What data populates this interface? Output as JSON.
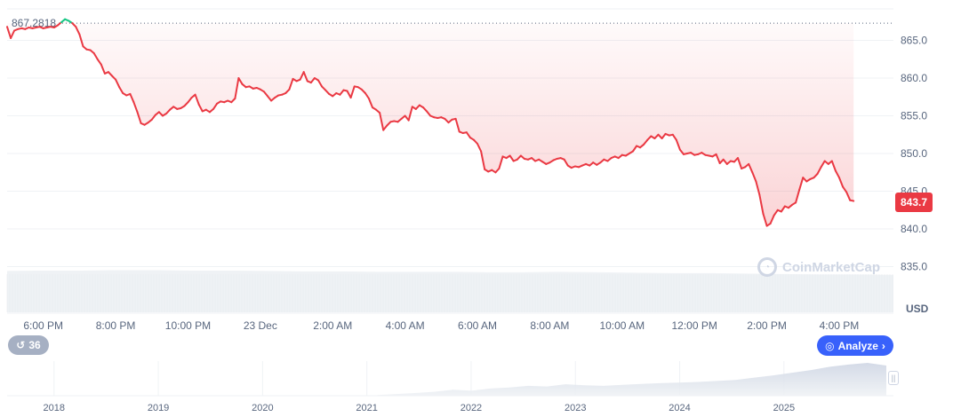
{
  "chart_data": {
    "type": "line",
    "title": "",
    "currency": "USD",
    "y_axis": {
      "ticks": [
        "865.0",
        "860.0",
        "855.0",
        "850.0",
        "845.0",
        "840.0",
        "835.0"
      ],
      "tick_values": [
        865,
        860,
        855,
        850,
        845,
        840,
        835
      ],
      "ylim": [
        834,
        868
      ]
    },
    "x_axis": {
      "ticks": [
        "6:00 PM",
        "8:00 PM",
        "10:00 PM",
        "23 Dec",
        "2:00 AM",
        "4:00 AM",
        "6:00 AM",
        "8:00 AM",
        "10:00 AM",
        "12:00 PM",
        "2:00 PM",
        "4:00 PM"
      ],
      "tick_hours": [
        0,
        2,
        4,
        6,
        8,
        10,
        12,
        14,
        16,
        18,
        20,
        22
      ],
      "xlim_hours": [
        -1,
        23.5
      ]
    },
    "series": [
      {
        "color_down": "#ea3943",
        "color_up": "#16c784",
        "points": [
          [
            -1.0,
            866.8
          ],
          [
            -0.9,
            865.3
          ],
          [
            -0.8,
            866.3
          ],
          [
            -0.7,
            866.5
          ],
          [
            -0.6,
            866.6
          ],
          [
            -0.5,
            866.5
          ],
          [
            -0.4,
            866.7
          ],
          [
            -0.3,
            866.6
          ],
          [
            -0.2,
            866.7
          ],
          [
            -0.1,
            866.8
          ],
          [
            0.0,
            866.6
          ],
          [
            0.1,
            866.7
          ],
          [
            0.2,
            866.8
          ],
          [
            0.3,
            866.7
          ],
          [
            0.4,
            867.0
          ],
          [
            0.5,
            867.4
          ],
          [
            0.6,
            867.8
          ],
          [
            0.7,
            867.6
          ],
          [
            0.8,
            867.3
          ],
          [
            0.9,
            866.8
          ],
          [
            1.0,
            865.8
          ],
          [
            1.1,
            864.2
          ],
          [
            1.2,
            863.8
          ],
          [
            1.3,
            863.7
          ],
          [
            1.4,
            863.3
          ],
          [
            1.5,
            862.5
          ],
          [
            1.6,
            861.8
          ],
          [
            1.7,
            860.6
          ],
          [
            1.8,
            860.8
          ],
          [
            1.9,
            860.3
          ],
          [
            2.0,
            859.8
          ],
          [
            2.1,
            858.8
          ],
          [
            2.2,
            858.0
          ],
          [
            2.3,
            857.7
          ],
          [
            2.4,
            857.9
          ],
          [
            2.5,
            856.8
          ],
          [
            2.6,
            855.5
          ],
          [
            2.7,
            854.0
          ],
          [
            2.8,
            853.8
          ],
          [
            2.9,
            854.1
          ],
          [
            3.0,
            854.5
          ],
          [
            3.1,
            855.1
          ],
          [
            3.2,
            855.5
          ],
          [
            3.3,
            855.0
          ],
          [
            3.4,
            855.3
          ],
          [
            3.5,
            855.8
          ],
          [
            3.6,
            856.2
          ],
          [
            3.7,
            855.9
          ],
          [
            3.8,
            856.0
          ],
          [
            3.9,
            856.3
          ],
          [
            4.0,
            856.8
          ],
          [
            4.1,
            857.4
          ],
          [
            4.2,
            857.8
          ],
          [
            4.3,
            856.5
          ],
          [
            4.4,
            855.6
          ],
          [
            4.5,
            855.8
          ],
          [
            4.6,
            855.5
          ],
          [
            4.7,
            855.9
          ],
          [
            4.8,
            856.6
          ],
          [
            4.9,
            856.9
          ],
          [
            5.0,
            856.8
          ],
          [
            5.1,
            857.0
          ],
          [
            5.2,
            856.8
          ],
          [
            5.3,
            857.3
          ],
          [
            5.4,
            860.0
          ],
          [
            5.5,
            859.2
          ],
          [
            5.6,
            858.8
          ],
          [
            5.7,
            858.9
          ],
          [
            5.8,
            858.6
          ],
          [
            5.9,
            858.7
          ],
          [
            6.0,
            858.5
          ],
          [
            6.1,
            858.2
          ],
          [
            6.2,
            857.6
          ],
          [
            6.3,
            857.0
          ],
          [
            6.4,
            857.4
          ],
          [
            6.5,
            857.7
          ],
          [
            6.6,
            857.8
          ],
          [
            6.7,
            858.0
          ],
          [
            6.8,
            858.5
          ],
          [
            6.9,
            859.9
          ],
          [
            7.0,
            859.6
          ],
          [
            7.1,
            859.8
          ],
          [
            7.2,
            860.8
          ],
          [
            7.3,
            859.6
          ],
          [
            7.4,
            859.4
          ],
          [
            7.5,
            860.0
          ],
          [
            7.6,
            859.7
          ],
          [
            7.7,
            858.9
          ],
          [
            7.8,
            858.4
          ],
          [
            7.9,
            857.9
          ],
          [
            8.0,
            857.6
          ],
          [
            8.1,
            858.0
          ],
          [
            8.2,
            857.8
          ],
          [
            8.3,
            858.4
          ],
          [
            8.4,
            858.3
          ],
          [
            8.5,
            857.4
          ],
          [
            8.6,
            858.9
          ],
          [
            8.7,
            858.8
          ],
          [
            8.8,
            858.5
          ],
          [
            8.9,
            858.0
          ],
          [
            9.0,
            857.3
          ],
          [
            9.1,
            856.1
          ],
          [
            9.2,
            855.8
          ],
          [
            9.3,
            855.4
          ],
          [
            9.4,
            853.1
          ],
          [
            9.5,
            853.7
          ],
          [
            9.6,
            854.2
          ],
          [
            9.7,
            854.3
          ],
          [
            9.8,
            854.2
          ],
          [
            9.9,
            854.6
          ],
          [
            10.0,
            855.0
          ],
          [
            10.1,
            854.4
          ],
          [
            10.2,
            856.2
          ],
          [
            10.3,
            855.9
          ],
          [
            10.4,
            856.4
          ],
          [
            10.5,
            856.1
          ],
          [
            10.6,
            855.6
          ],
          [
            10.7,
            855.0
          ],
          [
            10.8,
            854.8
          ],
          [
            10.9,
            854.7
          ],
          [
            11.0,
            854.8
          ],
          [
            11.1,
            854.6
          ],
          [
            11.2,
            854.1
          ],
          [
            11.3,
            854.5
          ],
          [
            11.4,
            854.6
          ],
          [
            11.5,
            852.9
          ],
          [
            11.6,
            852.7
          ],
          [
            11.7,
            852.8
          ],
          [
            11.8,
            852.1
          ],
          [
            11.9,
            851.8
          ],
          [
            12.0,
            851.3
          ],
          [
            12.1,
            850.3
          ],
          [
            12.2,
            847.9
          ],
          [
            12.3,
            847.6
          ],
          [
            12.4,
            847.8
          ],
          [
            12.5,
            847.5
          ],
          [
            12.6,
            848.0
          ],
          [
            12.7,
            849.6
          ],
          [
            12.8,
            849.4
          ],
          [
            12.9,
            849.7
          ],
          [
            13.0,
            849.0
          ],
          [
            13.1,
            849.2
          ],
          [
            13.2,
            849.7
          ],
          [
            13.3,
            849.3
          ],
          [
            13.4,
            849.2
          ],
          [
            13.5,
            849.4
          ],
          [
            13.6,
            849.0
          ],
          [
            13.7,
            849.2
          ],
          [
            13.8,
            848.9
          ],
          [
            13.9,
            848.6
          ],
          [
            14.0,
            848.8
          ],
          [
            14.1,
            849.1
          ],
          [
            14.2,
            849.3
          ],
          [
            14.3,
            849.4
          ],
          [
            14.4,
            849.2
          ],
          [
            14.5,
            848.4
          ],
          [
            14.6,
            848.1
          ],
          [
            14.7,
            848.3
          ],
          [
            14.8,
            848.2
          ],
          [
            14.9,
            848.4
          ],
          [
            15.0,
            848.6
          ],
          [
            15.1,
            848.4
          ],
          [
            15.2,
            848.8
          ],
          [
            15.3,
            848.5
          ],
          [
            15.4,
            848.8
          ],
          [
            15.5,
            849.2
          ],
          [
            15.6,
            849.0
          ],
          [
            15.7,
            849.4
          ],
          [
            15.8,
            849.6
          ],
          [
            15.9,
            849.4
          ],
          [
            16.0,
            849.8
          ],
          [
            16.1,
            849.7
          ],
          [
            16.2,
            850.0
          ],
          [
            16.3,
            850.3
          ],
          [
            16.4,
            851.0
          ],
          [
            16.5,
            850.8
          ],
          [
            16.6,
            851.2
          ],
          [
            16.7,
            851.8
          ],
          [
            16.8,
            852.3
          ],
          [
            16.9,
            852.0
          ],
          [
            17.0,
            852.5
          ],
          [
            17.1,
            852.0
          ],
          [
            17.2,
            852.6
          ],
          [
            17.3,
            852.4
          ],
          [
            17.4,
            852.5
          ],
          [
            17.5,
            851.8
          ],
          [
            17.6,
            850.5
          ],
          [
            17.7,
            849.9
          ],
          [
            17.8,
            850.0
          ],
          [
            17.9,
            850.1
          ],
          [
            18.0,
            849.8
          ],
          [
            18.1,
            849.9
          ],
          [
            18.2,
            850.1
          ],
          [
            18.3,
            849.8
          ],
          [
            18.4,
            849.7
          ],
          [
            18.5,
            849.6
          ],
          [
            18.6,
            849.9
          ],
          [
            18.7,
            848.7
          ],
          [
            18.8,
            849.2
          ],
          [
            18.9,
            848.6
          ],
          [
            19.0,
            849.0
          ],
          [
            19.1,
            848.9
          ],
          [
            19.2,
            849.4
          ],
          [
            19.3,
            848.0
          ],
          [
            19.4,
            848.2
          ],
          [
            19.5,
            848.6
          ],
          [
            19.6,
            847.5
          ],
          [
            19.7,
            846.3
          ],
          [
            19.8,
            844.5
          ],
          [
            19.9,
            842.0
          ],
          [
            20.0,
            840.4
          ],
          [
            20.1,
            840.7
          ],
          [
            20.2,
            841.8
          ],
          [
            20.3,
            842.5
          ],
          [
            20.4,
            842.3
          ],
          [
            20.5,
            843.0
          ],
          [
            20.6,
            842.8
          ],
          [
            20.7,
            843.2
          ],
          [
            20.8,
            843.5
          ],
          [
            20.9,
            845.2
          ],
          [
            21.0,
            846.8
          ],
          [
            21.1,
            846.3
          ],
          [
            21.2,
            846.6
          ],
          [
            21.3,
            846.8
          ],
          [
            21.4,
            847.3
          ],
          [
            21.5,
            848.2
          ],
          [
            21.6,
            849.0
          ],
          [
            21.7,
            848.6
          ],
          [
            21.8,
            849.0
          ],
          [
            21.9,
            847.7
          ],
          [
            22.0,
            846.8
          ],
          [
            22.1,
            845.6
          ],
          [
            22.2,
            844.9
          ],
          [
            22.3,
            843.8
          ],
          [
            22.4,
            843.7
          ]
        ]
      }
    ],
    "reference_line": {
      "label": "867.2818",
      "value": 867.2818
    },
    "last_value": {
      "label": "843.7",
      "value": 843.7
    },
    "volume": {
      "relative_levels": [
        0.95,
        0.96,
        0.96,
        0.97,
        0.97,
        0.96,
        0.96,
        0.95,
        0.94,
        0.94,
        0.93,
        0.93,
        0.93,
        0.92,
        0.92,
        0.93,
        0.92,
        0.91,
        0.9,
        0.9,
        0.89,
        0.88,
        0.87,
        0.87,
        0.86
      ]
    },
    "navigator": {
      "years": [
        "2018",
        "2019",
        "2020",
        "2021",
        "2022",
        "2023",
        "2024",
        "2025"
      ],
      "year_values": [
        2018,
        2019,
        2020,
        2021,
        2022,
        2023,
        2024,
        2025
      ],
      "xlim_years": [
        2017.55,
        2026.05
      ],
      "history_start_year": 2021.1,
      "relative_levels": [
        0.02,
        0.05,
        0.08,
        0.12,
        0.18,
        0.15,
        0.22,
        0.25,
        0.3,
        0.28,
        0.35,
        0.32,
        0.3,
        0.33,
        0.36,
        0.38,
        0.4,
        0.42,
        0.45,
        0.48,
        0.55,
        0.62,
        0.7,
        0.78,
        0.88,
        0.95,
        1.0,
        0.92
      ]
    }
  },
  "ui": {
    "currency_label": "USD",
    "analyze_label": "Analyze",
    "history_count": "36",
    "watermark": "CoinMarketCap"
  }
}
